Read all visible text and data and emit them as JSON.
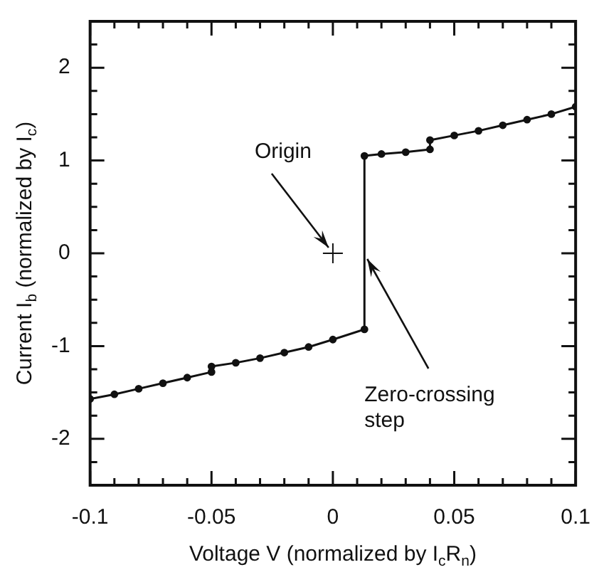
{
  "chart_data": {
    "type": "line",
    "xlabel": "Voltage V (normalized by I$_{c}$R$_{n}$)",
    "ylabel": "Current I$_{b}$ (normalized by I$_{c}$)",
    "xlim": [
      -0.1,
      0.1
    ],
    "ylim": [
      -2.5,
      2.5
    ],
    "xticks": [
      -0.1,
      {
        "value": -0.09,
        "label": null
      },
      {
        "value": -0.08,
        "label": null
      },
      {
        "value": -0.07,
        "label": null
      },
      {
        "value": -0.06,
        "label": null
      },
      -0.05,
      {
        "value": -0.04,
        "label": null
      },
      {
        "value": -0.03,
        "label": null
      },
      {
        "value": -0.02,
        "label": null
      },
      {
        "value": -0.01,
        "label": null
      },
      0,
      {
        "value": 0.01,
        "label": null
      },
      {
        "value": 0.02,
        "label": null
      },
      {
        "value": 0.03,
        "label": null
      },
      {
        "value": 0.04,
        "label": null
      },
      0.05,
      {
        "value": 0.06,
        "label": null
      },
      {
        "value": 0.07,
        "label": null
      },
      {
        "value": 0.08,
        "label": null
      },
      {
        "value": 0.09,
        "label": null
      },
      0.1
    ],
    "yticks": [
      -2,
      {
        "value": -2.25,
        "label": null
      },
      {
        "value": -1.75,
        "label": null
      },
      {
        "value": -1.5,
        "label": null
      },
      {
        "value": -1.25,
        "label": null
      },
      -1,
      {
        "value": -0.75,
        "label": null
      },
      {
        "value": -0.5,
        "label": null
      },
      {
        "value": -0.25,
        "label": null
      },
      0,
      {
        "value": 0.25,
        "label": null
      },
      {
        "value": 0.5,
        "label": null
      },
      {
        "value": 0.75,
        "label": null
      },
      1,
      {
        "value": 1.25,
        "label": null
      },
      {
        "value": 1.5,
        "label": null
      },
      {
        "value": 1.75,
        "label": null
      },
      2,
      {
        "value": 2.25,
        "label": null
      }
    ],
    "grid": false,
    "legend": false,
    "marker": "circle",
    "line_style": "solid",
    "series": [
      {
        "color": "#111111",
        "x": [
          -0.1,
          -0.09,
          -0.08,
          -0.07,
          -0.06,
          -0.05,
          -0.05,
          -0.04,
          -0.03,
          -0.02,
          -0.01,
          0,
          0.013,
          0.013,
          0.02,
          0.03,
          0.04,
          0.04,
          0.05,
          0.06,
          0.07,
          0.08,
          0.09,
          0.1
        ],
        "values": [
          -1.57,
          -1.52,
          -1.46,
          -1.4,
          -1.34,
          -1.28,
          -1.22,
          -1.18,
          -1.13,
          -1.07,
          -1.01,
          -0.93,
          -0.82,
          1.05,
          1.07,
          1.09,
          1.12,
          1.22,
          1.27,
          1.32,
          1.38,
          1.44,
          1.5,
          1.58
        ]
      },
      {
        "type": "scatter",
        "marker": "cross",
        "color": "#111111",
        "x": [
          0
        ],
        "values": [
          0
        ]
      }
    ],
    "annotations": [
      {
        "text": "Origin",
        "x": 0,
        "y": 0
      },
      {
        "text": "Zero-crossing step",
        "x": 0.013,
        "y": 0
      }
    ]
  }
}
